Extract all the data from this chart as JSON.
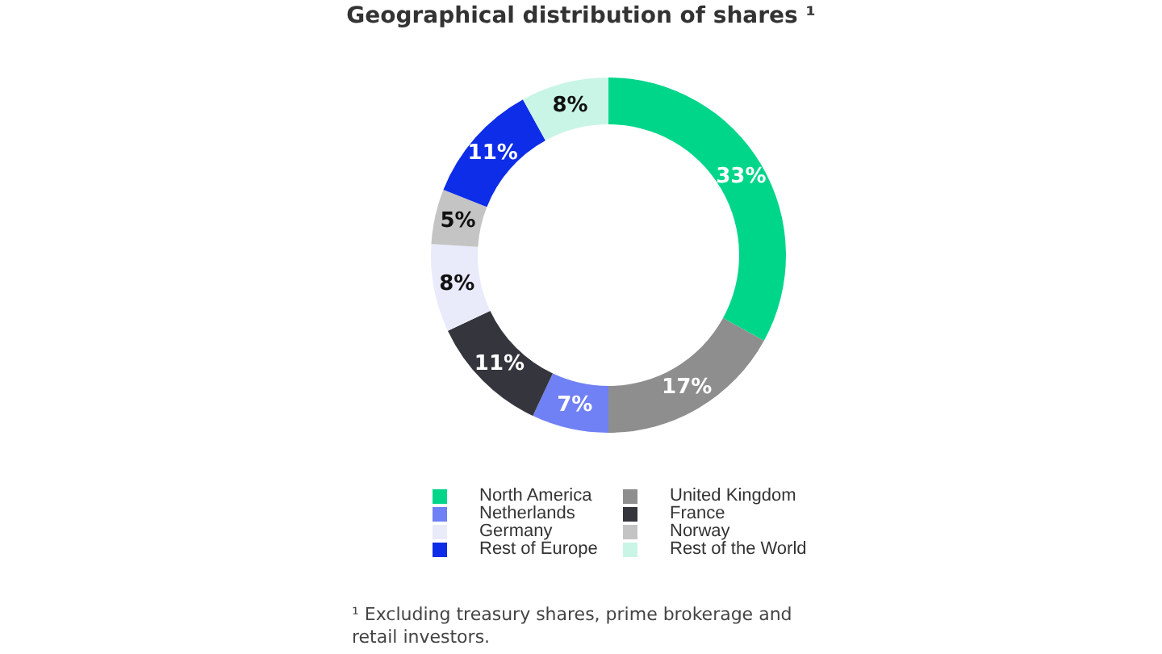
{
  "chart_data": {
    "type": "donut",
    "title": "Geographical distribution of shares ¹",
    "categories": [
      "North America",
      "United Kingdom",
      "Netherlands",
      "France",
      "Germany",
      "Norway",
      "Rest of Europe",
      "Rest of the World"
    ],
    "values": [
      33,
      17,
      7,
      11,
      8,
      5,
      11,
      8
    ],
    "value_labels": [
      "33%",
      "17%",
      "7%",
      "11%",
      "8%",
      "5%",
      "11%",
      "8%"
    ],
    "colors": [
      "#00d68a",
      "#8e8e8e",
      "#7080f5",
      "#35353d",
      "#e9ebfb",
      "#c4c4c4",
      "#0d2de8",
      "#c9f5e6"
    ],
    "legend": "bottom",
    "annotations": [
      "¹ Excluding treasury shares, prime brokerage and retail investors."
    ]
  }
}
